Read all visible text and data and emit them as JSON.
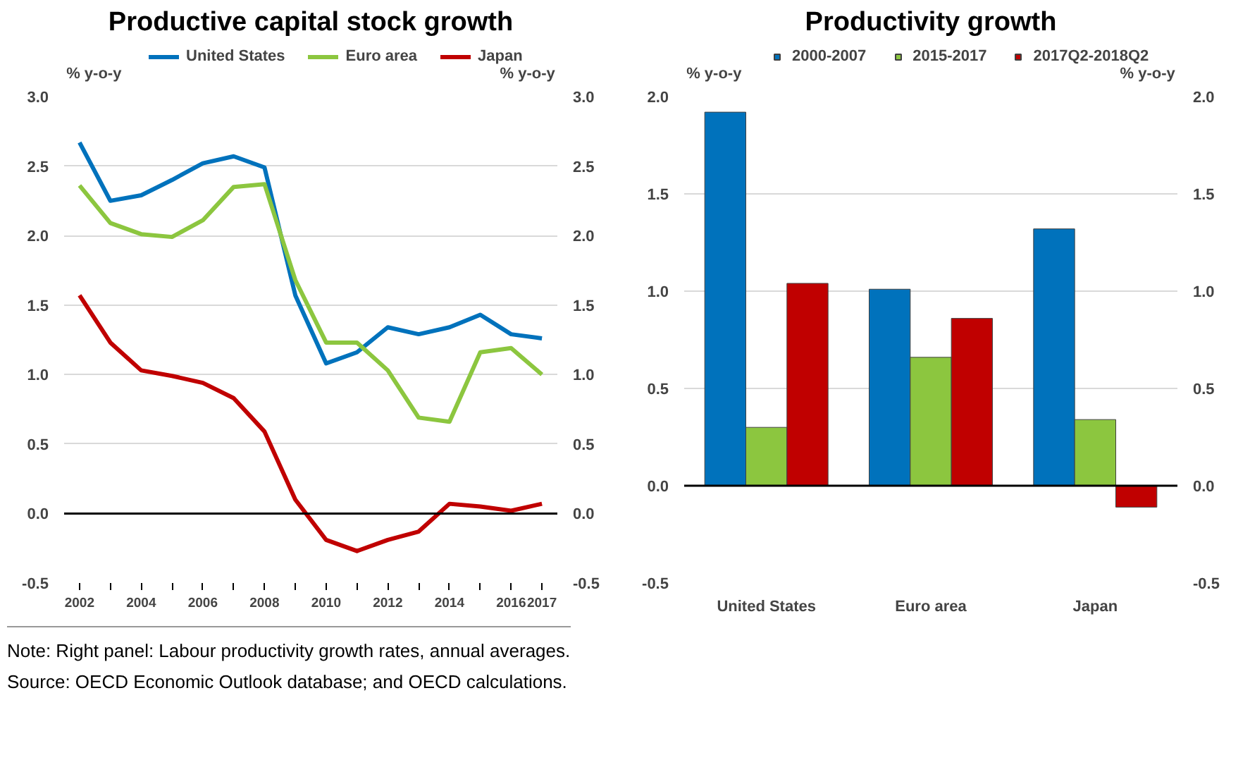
{
  "chart_data": [
    {
      "type": "line",
      "title": "Productive capital stock growth",
      "ylabel": "% y-o-y",
      "y2label": "% y-o-y",
      "x": [
        2002,
        2003,
        2004,
        2005,
        2006,
        2007,
        2008,
        2009,
        2010,
        2011,
        2012,
        2013,
        2014,
        2015,
        2016,
        2017
      ],
      "series": [
        {
          "name": "United States",
          "color": "#0072bc",
          "values": [
            2.67,
            2.25,
            2.29,
            2.4,
            2.52,
            2.57,
            2.49,
            1.57,
            1.08,
            1.16,
            1.34,
            1.29,
            1.34,
            1.43,
            1.29,
            1.26
          ]
        },
        {
          "name": "Euro area",
          "color": "#8cc63f",
          "values": [
            2.36,
            2.09,
            2.01,
            1.99,
            2.11,
            2.35,
            2.37,
            1.68,
            1.23,
            1.23,
            1.03,
            0.69,
            0.66,
            1.16,
            1.19,
            1.0
          ]
        },
        {
          "name": "Japan",
          "color": "#c00000",
          "values": [
            1.57,
            1.23,
            1.03,
            0.99,
            0.94,
            0.83,
            0.59,
            0.1,
            -0.19,
            -0.27,
            -0.19,
            -0.13,
            0.07,
            0.05,
            0.02,
            0.07
          ]
        }
      ],
      "xlim": [
        2001.5,
        2017.5
      ],
      "xticks": [
        2002,
        {
          "value": 2003,
          "label": null
        },
        2004,
        {
          "value": 2005,
          "label": null
        },
        2006,
        {
          "value": 2007,
          "label": null
        },
        2008,
        {
          "value": 2009,
          "label": null
        },
        2010,
        {
          "value": 2011,
          "label": null
        },
        2012,
        {
          "value": 2013,
          "label": null
        },
        2014,
        {
          "value": 2015,
          "label": null
        },
        2016,
        2017
      ],
      "ylim": [
        -0.5,
        3.0
      ],
      "yticks": [
        {
          "value": -0.5,
          "label": "-0.5"
        },
        {
          "value": 0,
          "label": "0.0"
        },
        {
          "value": 0.5,
          "label": "0.5"
        },
        {
          "value": 1,
          "label": "1.0"
        },
        {
          "value": 1.5,
          "label": "1.5"
        },
        {
          "value": 2,
          "label": "2.0"
        },
        {
          "value": 2.5,
          "label": "2.5"
        },
        {
          "value": 3,
          "label": "3.0"
        }
      ],
      "y2lim": [
        -0.5,
        3.0
      ],
      "y2ticks": [
        {
          "value": -0.5,
          "label": "-0.5"
        },
        {
          "value": 0,
          "label": "0.0"
        },
        {
          "value": 0.5,
          "label": "0.5"
        },
        {
          "value": 1,
          "label": "1.0"
        },
        {
          "value": 1.5,
          "label": "1.5"
        },
        {
          "value": 2,
          "label": "2.0"
        },
        {
          "value": 2.5,
          "label": "2.5"
        },
        {
          "value": 3,
          "label": "3.0"
        }
      ],
      "ref_lines": [
        {
          "axis": "y",
          "value": 0,
          "color": "#000000"
        }
      ],
      "grid": "y",
      "legend": "top",
      "line_style": "solid"
    },
    {
      "type": "bar",
      "title": "Productivity growth",
      "ylabel": "% y-o-y",
      "y2label": "% y-o-y",
      "categories": [
        "United States",
        "Euro area",
        "Japan"
      ],
      "series": [
        {
          "name": "2000-2007",
          "color": "#0072bc",
          "values": [
            1.92,
            1.01,
            1.32
          ]
        },
        {
          "name": "2015-2017",
          "color": "#8cc63f",
          "values": [
            0.3,
            0.66,
            0.34
          ]
        },
        {
          "name": "2017Q2-2018Q2",
          "color": "#c00000",
          "values": [
            1.04,
            0.86,
            -0.11
          ]
        }
      ],
      "ylim": [
        -0.5,
        2.0
      ],
      "yticks": [
        {
          "value": -0.5,
          "label": "-0.5"
        },
        {
          "value": 0,
          "label": "0.0"
        },
        {
          "value": 0.5,
          "label": "0.5"
        },
        {
          "value": 1,
          "label": "1.0"
        },
        {
          "value": 1.5,
          "label": "1.5"
        },
        {
          "value": 2,
          "label": "2.0"
        }
      ],
      "y2lim": [
        -0.5,
        2.0
      ],
      "y2ticks": [
        {
          "value": -0.5,
          "label": "-0.5"
        },
        {
          "value": 0,
          "label": "0.0"
        },
        {
          "value": 0.5,
          "label": "0.5"
        },
        {
          "value": 1,
          "label": "1.0"
        },
        {
          "value": 1.5,
          "label": "1.5"
        },
        {
          "value": 2,
          "label": "2.0"
        }
      ],
      "ref_lines": [
        {
          "axis": "y",
          "value": 0,
          "color": "#000000"
        }
      ],
      "grid": "y",
      "legend": "top",
      "annotations": [
        "Note:  Right panel: Labour productivity growth rates, annual averages.",
        "Source:  OECD Economic Outlook database; and OECD calculations."
      ]
    }
  ]
}
